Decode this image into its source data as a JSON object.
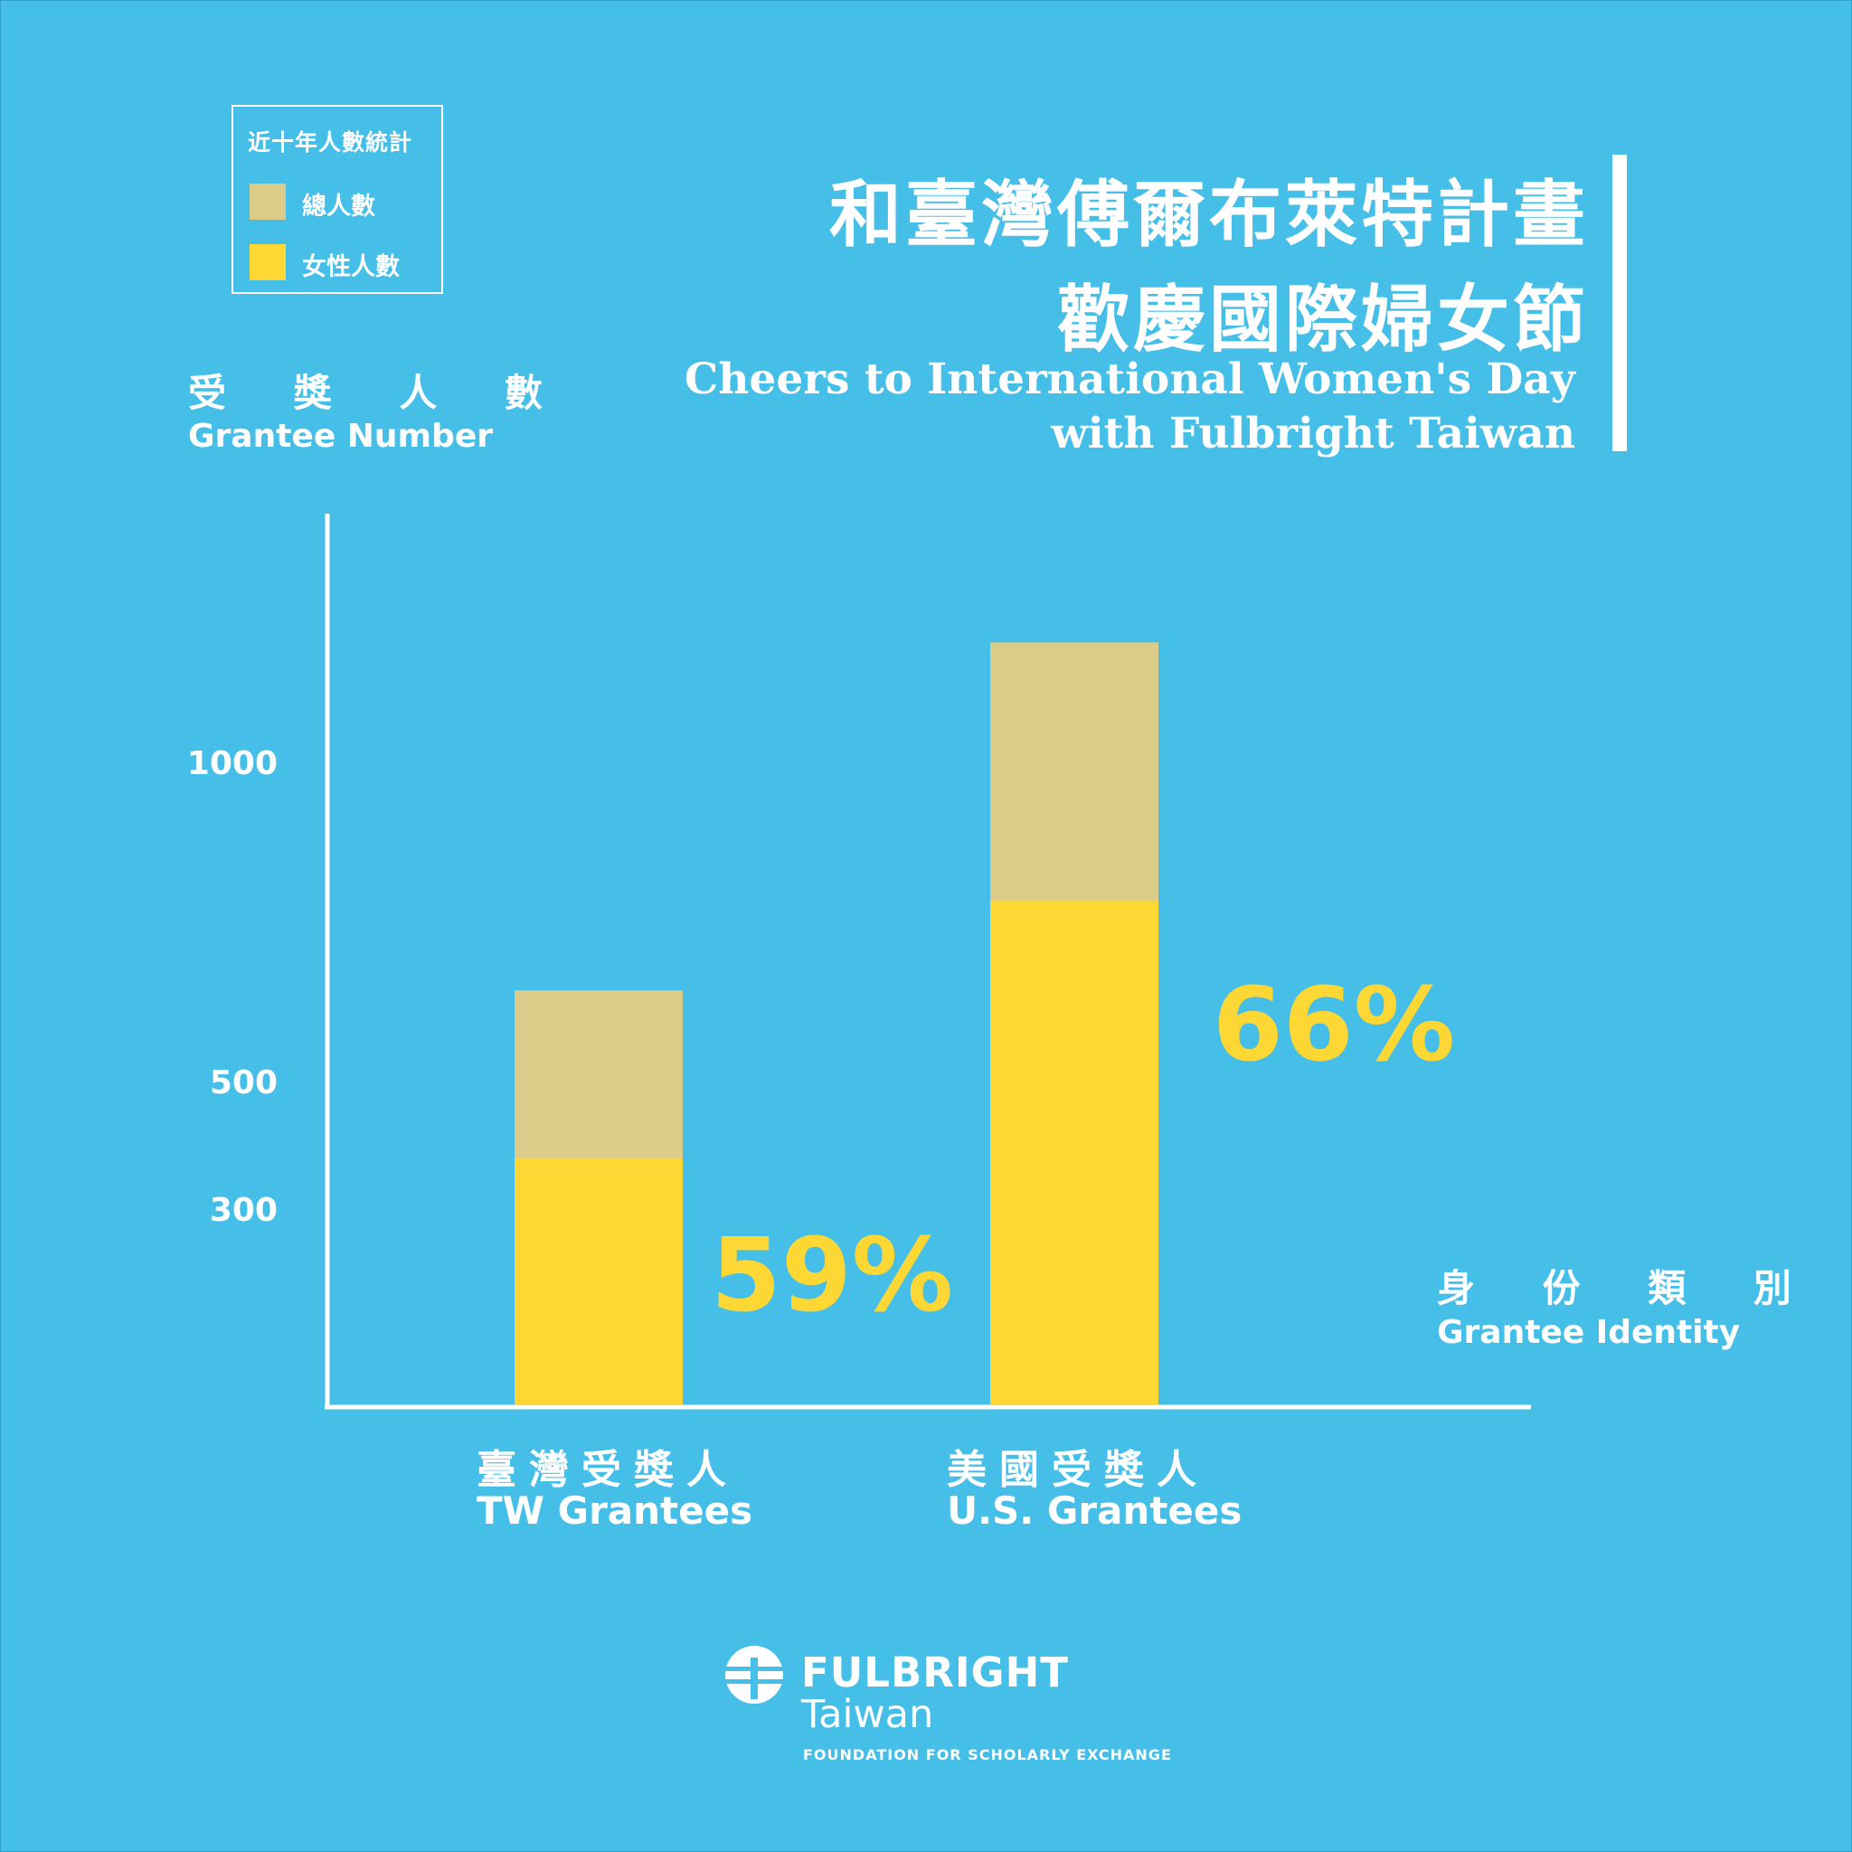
{
  "colors": {
    "background": "#45bee8",
    "total": "#dccc8a",
    "female": "#fdd835",
    "text": "#ffffff"
  },
  "legend": {
    "title": "近十年人數統計",
    "items": [
      {
        "label": "總人數",
        "color": "#dccc8a"
      },
      {
        "label": "女性人數",
        "color": "#fdd835"
      }
    ]
  },
  "header": {
    "title_line1": "和臺灣傅爾布萊特計畫",
    "title_line2": "歡慶國際婦女節",
    "subtitle_line1": "Cheers to International Women's Day",
    "subtitle_line2": "with Fulbright Taiwan"
  },
  "chart_data": {
    "type": "bar",
    "stacked": "overlay",
    "ylabel": "受 獎 人 數",
    "ylabel_en": "Grantee Number",
    "xlabel": "身 份 類 別",
    "xlabel_en": "Grantee Identity",
    "yticks": [
      300,
      500,
      1000
    ],
    "categories": [
      {
        "zh": "臺灣受獎人",
        "en": "TW Grantees"
      },
      {
        "zh": "美國受獎人",
        "en": "U.S. Grantees"
      }
    ],
    "series": [
      {
        "name": "總人數",
        "values": [
          650,
          1195
        ]
      },
      {
        "name": "女性人數",
        "values": [
          387,
          790
        ]
      }
    ],
    "percent_labels": [
      "59%",
      "66%"
    ],
    "grid": false
  },
  "logo": {
    "name": "FULBRIGHT",
    "sub": "Taiwan",
    "tagline": "FOUNDATION FOR SCHOLARLY EXCHANGE"
  }
}
